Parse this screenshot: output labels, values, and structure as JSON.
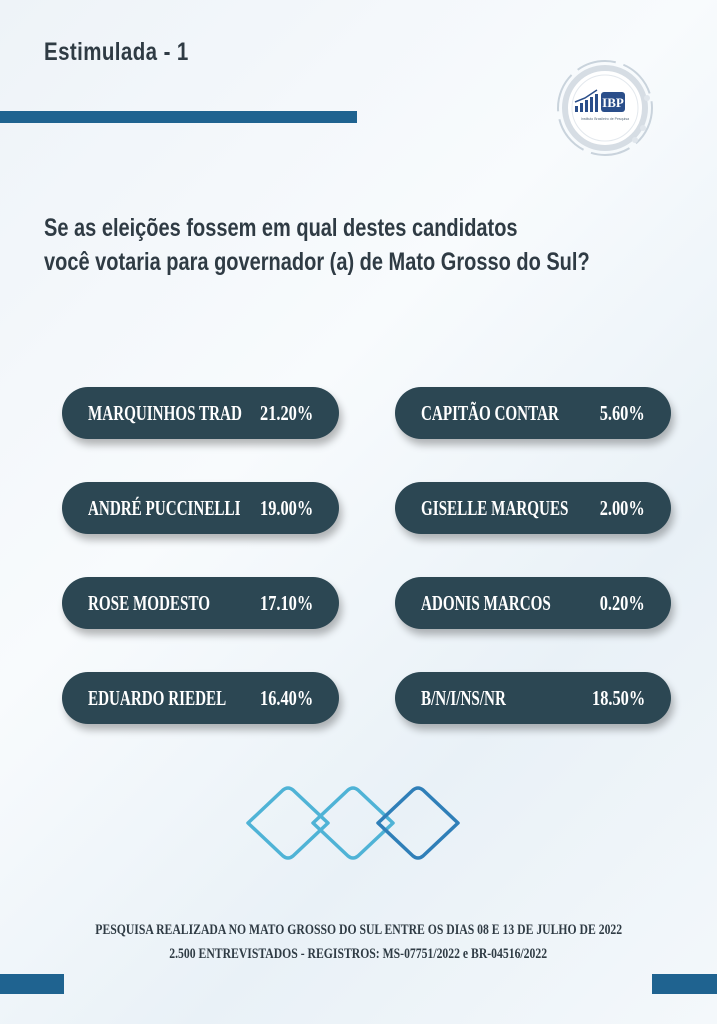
{
  "header": {
    "title": "Estimulada - 1"
  },
  "logo": {
    "text": "IBP",
    "caption": "Instituto Brasileiro de Pesquisa"
  },
  "question": {
    "line1": "Se as eleições fossem em qual destes candidatos",
    "line2": "você votaria para governador (a) de Mato Grosso do Sul?"
  },
  "results": {
    "left": [
      {
        "name": "MARQUINHOS TRAD",
        "pct": "21.20%"
      },
      {
        "name": "ANDRÉ PUCCINELLI",
        "pct": "19.00%"
      },
      {
        "name": "ROSE MODESTO",
        "pct": "17.10%"
      },
      {
        "name": "EDUARDO RIEDEL",
        "pct": "16.40%"
      }
    ],
    "right": [
      {
        "name": "CAPITÃO CONTAR",
        "pct": "5.60%"
      },
      {
        "name": "GISELLE MARQUES",
        "pct": "2.00%"
      },
      {
        "name": "ADONIS MARCOS",
        "pct": "0.20%"
      },
      {
        "name": "B/N/I/NS/NR",
        "pct": "18.50%"
      }
    ]
  },
  "footer": {
    "line1": "PESQUISA REALIZADA NO MATO GROSSO DO SUL ENTRE OS DIAS 08 E 13 DE JULHO DE 2022",
    "line2": "2.500 ENTREVISTADOS - REGISTROS: MS-07751/2022 e BR-04516/2022"
  },
  "colors": {
    "accent": "#1f6390",
    "pill": "#2c4753",
    "text": "#2f3b44",
    "diamond": "#4fb3d6"
  }
}
